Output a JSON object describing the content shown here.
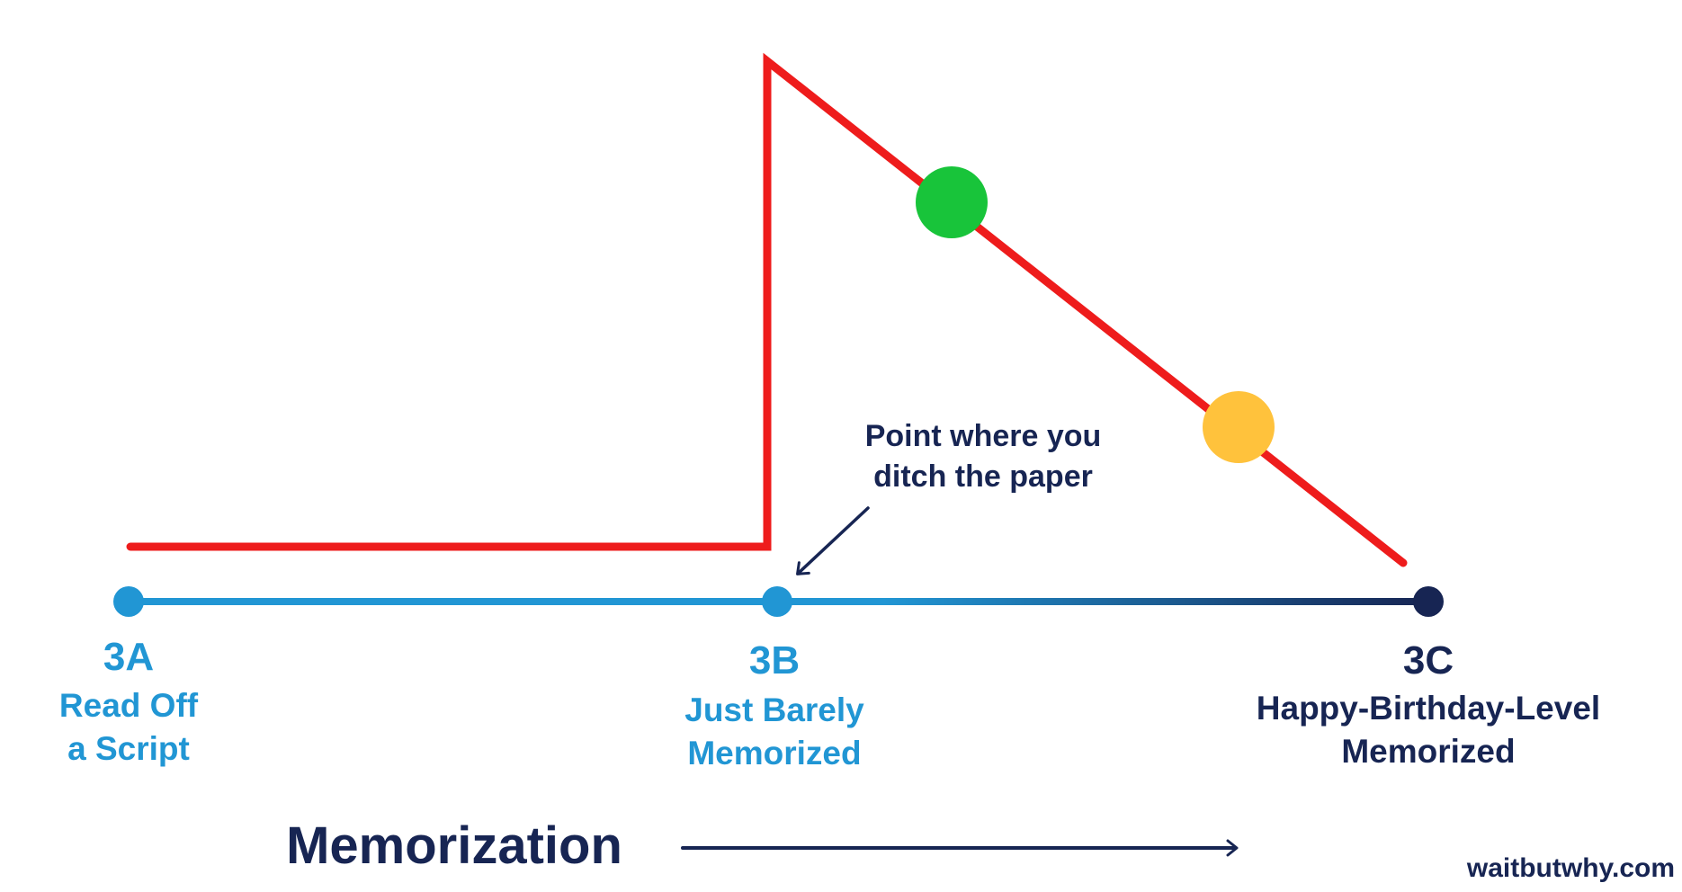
{
  "stages": [
    {
      "code": "3A",
      "line1": "Read Off",
      "line2": "a Script",
      "color": "#2196d4"
    },
    {
      "code": "3B",
      "line1": "Just Barely",
      "line2": "Memorized",
      "color": "#2196d4"
    },
    {
      "code": "3C",
      "line1": "Happy-Birthday-Level",
      "line2": "Memorized",
      "color": "#172553"
    }
  ],
  "annotation": {
    "line1": "Point where you",
    "line2": "ditch the paper"
  },
  "axis": {
    "label": "Memorization"
  },
  "credit": "waitbutwhy.com",
  "colors": {
    "red_line": "#ee1c1c",
    "timeline_start": "#2196d4",
    "timeline_end": "#172553",
    "green_dot": "#18c43a",
    "yellow_dot": "#ffc23c",
    "navy": "#172553"
  }
}
